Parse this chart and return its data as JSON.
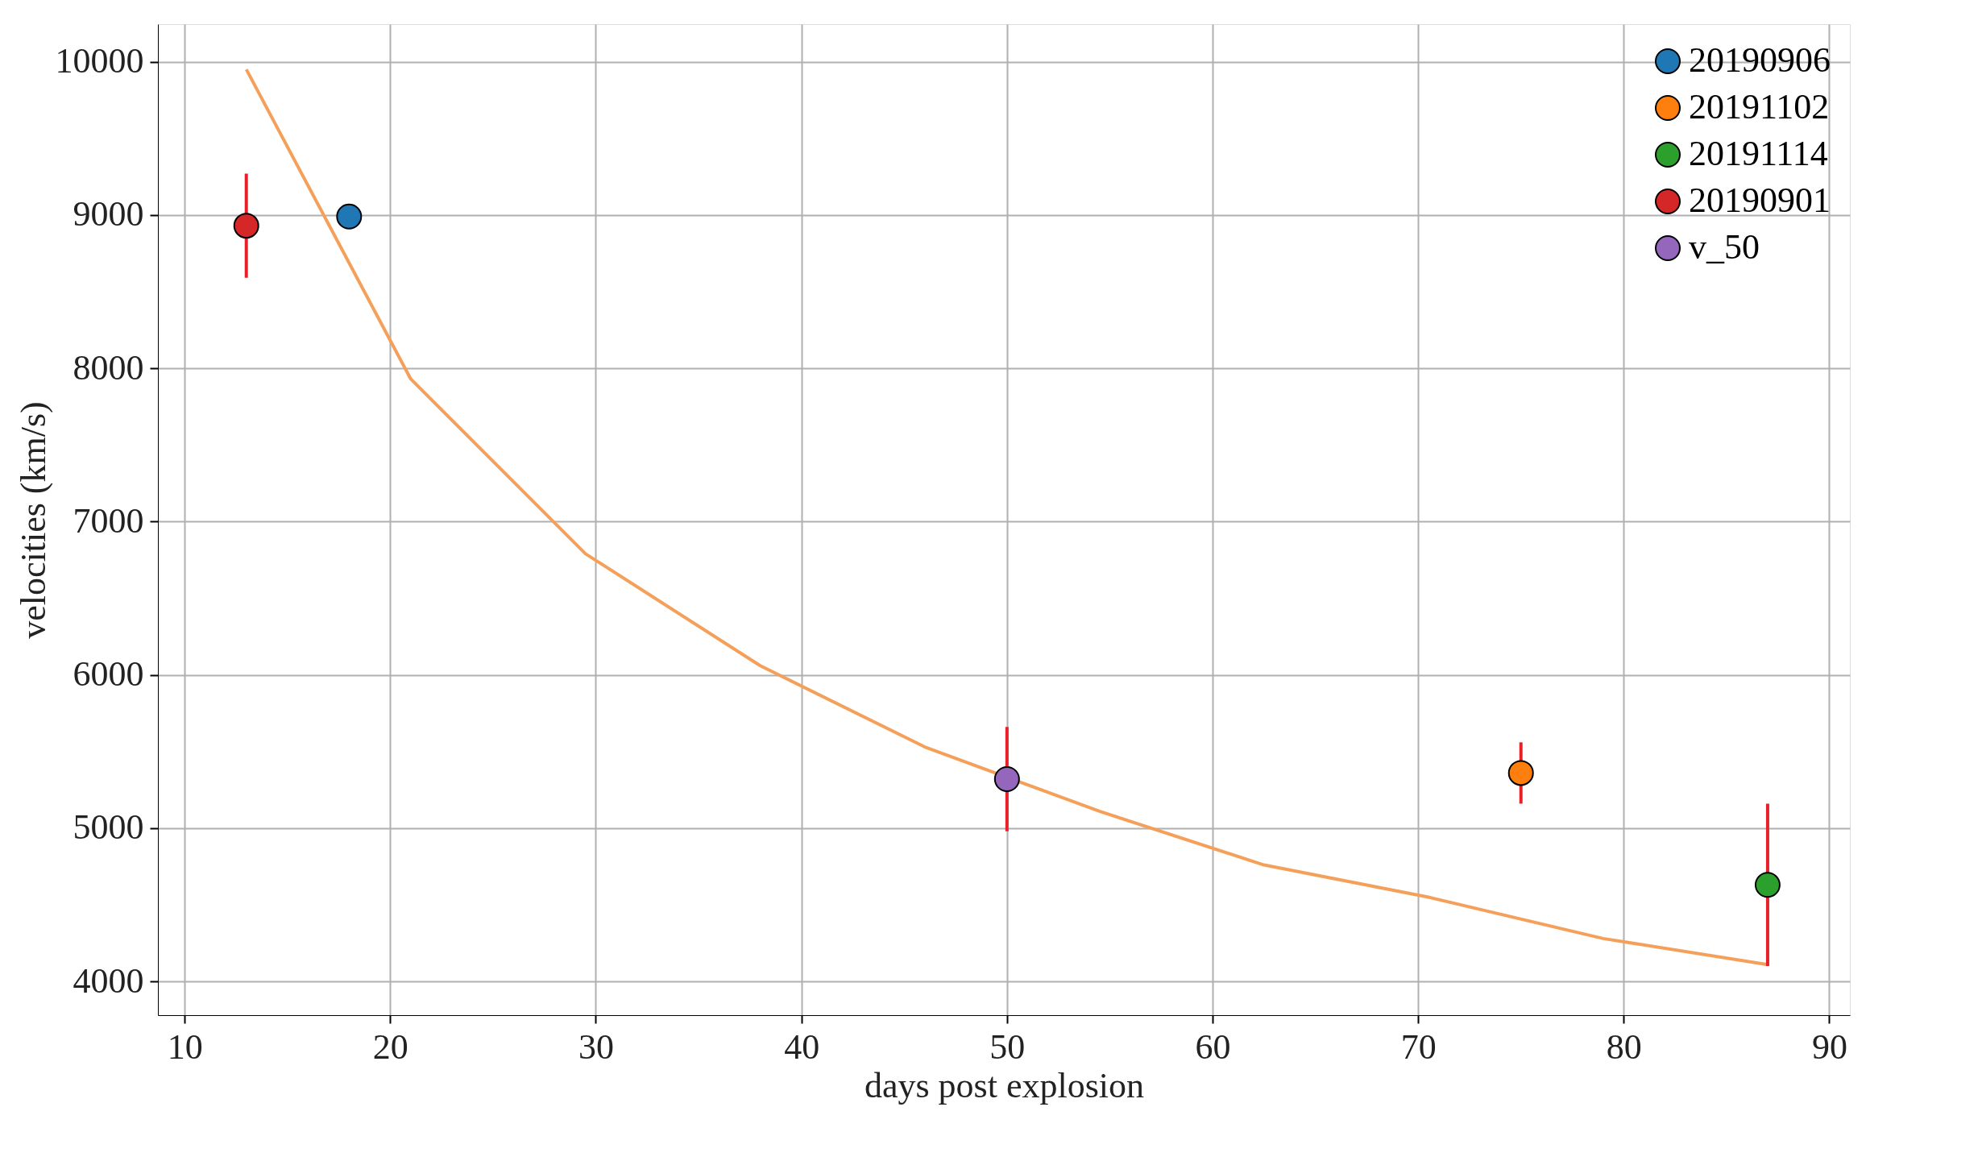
{
  "chart_data": {
    "type": "scatter",
    "xlabel": "days post explosion",
    "ylabel": "velocities (km/s)",
    "xlim": [
      8.7,
      91
    ],
    "ylim": [
      3780,
      10245
    ],
    "xticks": [
      10,
      20,
      30,
      40,
      50,
      60,
      70,
      80,
      90
    ],
    "yticks": [
      4000,
      5000,
      6000,
      7000,
      8000,
      9000,
      10000
    ],
    "grid": true,
    "legend": "top right",
    "marker": "circle",
    "series": [
      {
        "name": "20190906",
        "color": "#1f77b4",
        "x": [
          18
        ],
        "values": [
          8990
        ]
      },
      {
        "name": "20191102",
        "color": "#ff7f0e",
        "x": [
          75
        ],
        "values": [
          5360
        ],
        "errors": [
          200
        ]
      },
      {
        "name": "20191114",
        "color": "#2ca02c",
        "x": [
          87
        ],
        "values": [
          4630
        ],
        "errors": [
          530
        ]
      },
      {
        "name": "20190901",
        "color": "#d62728",
        "x": [
          13
        ],
        "values": [
          8930
        ],
        "errors": [
          340
        ]
      },
      {
        "name": "v_50",
        "color": "#9467bd",
        "x": [
          50
        ],
        "values": [
          5320
        ],
        "errors": [
          340
        ]
      },
      {
        "type": "line",
        "color": "#f5a05a",
        "marker": "none",
        "line_style": "solid",
        "x": [
          13,
          21,
          29.5,
          38,
          46,
          54.5,
          62.5,
          70.5,
          79,
          87
        ],
        "values": [
          9950,
          7930,
          6790,
          6060,
          5530,
          5110,
          4760,
          4550,
          4280,
          4110
        ]
      }
    ]
  }
}
